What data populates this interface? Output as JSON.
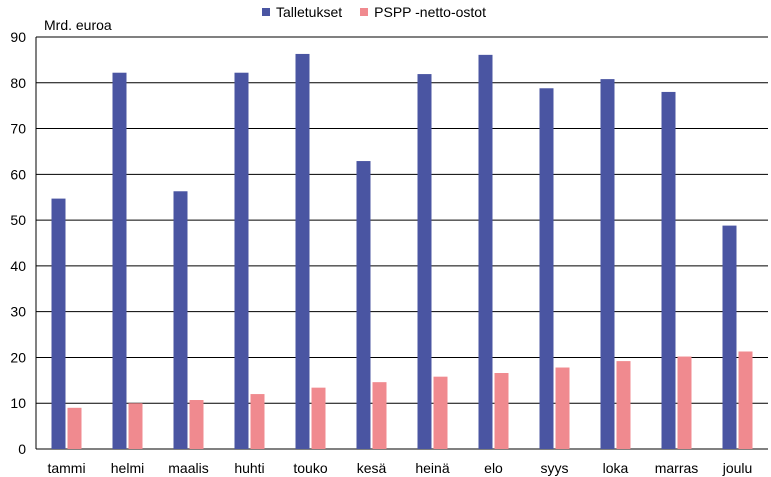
{
  "chart_data": {
    "type": "bar",
    "ylabel": "Mrd. euroa",
    "ylim": [
      0,
      90
    ],
    "yticks": [
      0,
      10,
      20,
      30,
      40,
      50,
      60,
      70,
      80,
      90
    ],
    "categories": [
      "tammi",
      "helmi",
      "maalis",
      "huhti",
      "touko",
      "kesä",
      "heinä",
      "elo",
      "syys",
      "loka",
      "marras",
      "joulu"
    ],
    "series": [
      {
        "name": "Talletukset",
        "color": "#4a55a2",
        "values": [
          54.7,
          82.2,
          56.3,
          82.2,
          86.3,
          62.9,
          81.9,
          86.1,
          78.8,
          80.8,
          78.0,
          48.8
        ]
      },
      {
        "name": "PSPP -netto-ostot",
        "color": "#f08a8f",
        "values": [
          9.0,
          10.0,
          10.7,
          12.0,
          13.4,
          14.6,
          15.8,
          16.6,
          17.8,
          19.2,
          20.2,
          21.3
        ]
      }
    ],
    "grid": true,
    "legend_position": "top-center"
  }
}
